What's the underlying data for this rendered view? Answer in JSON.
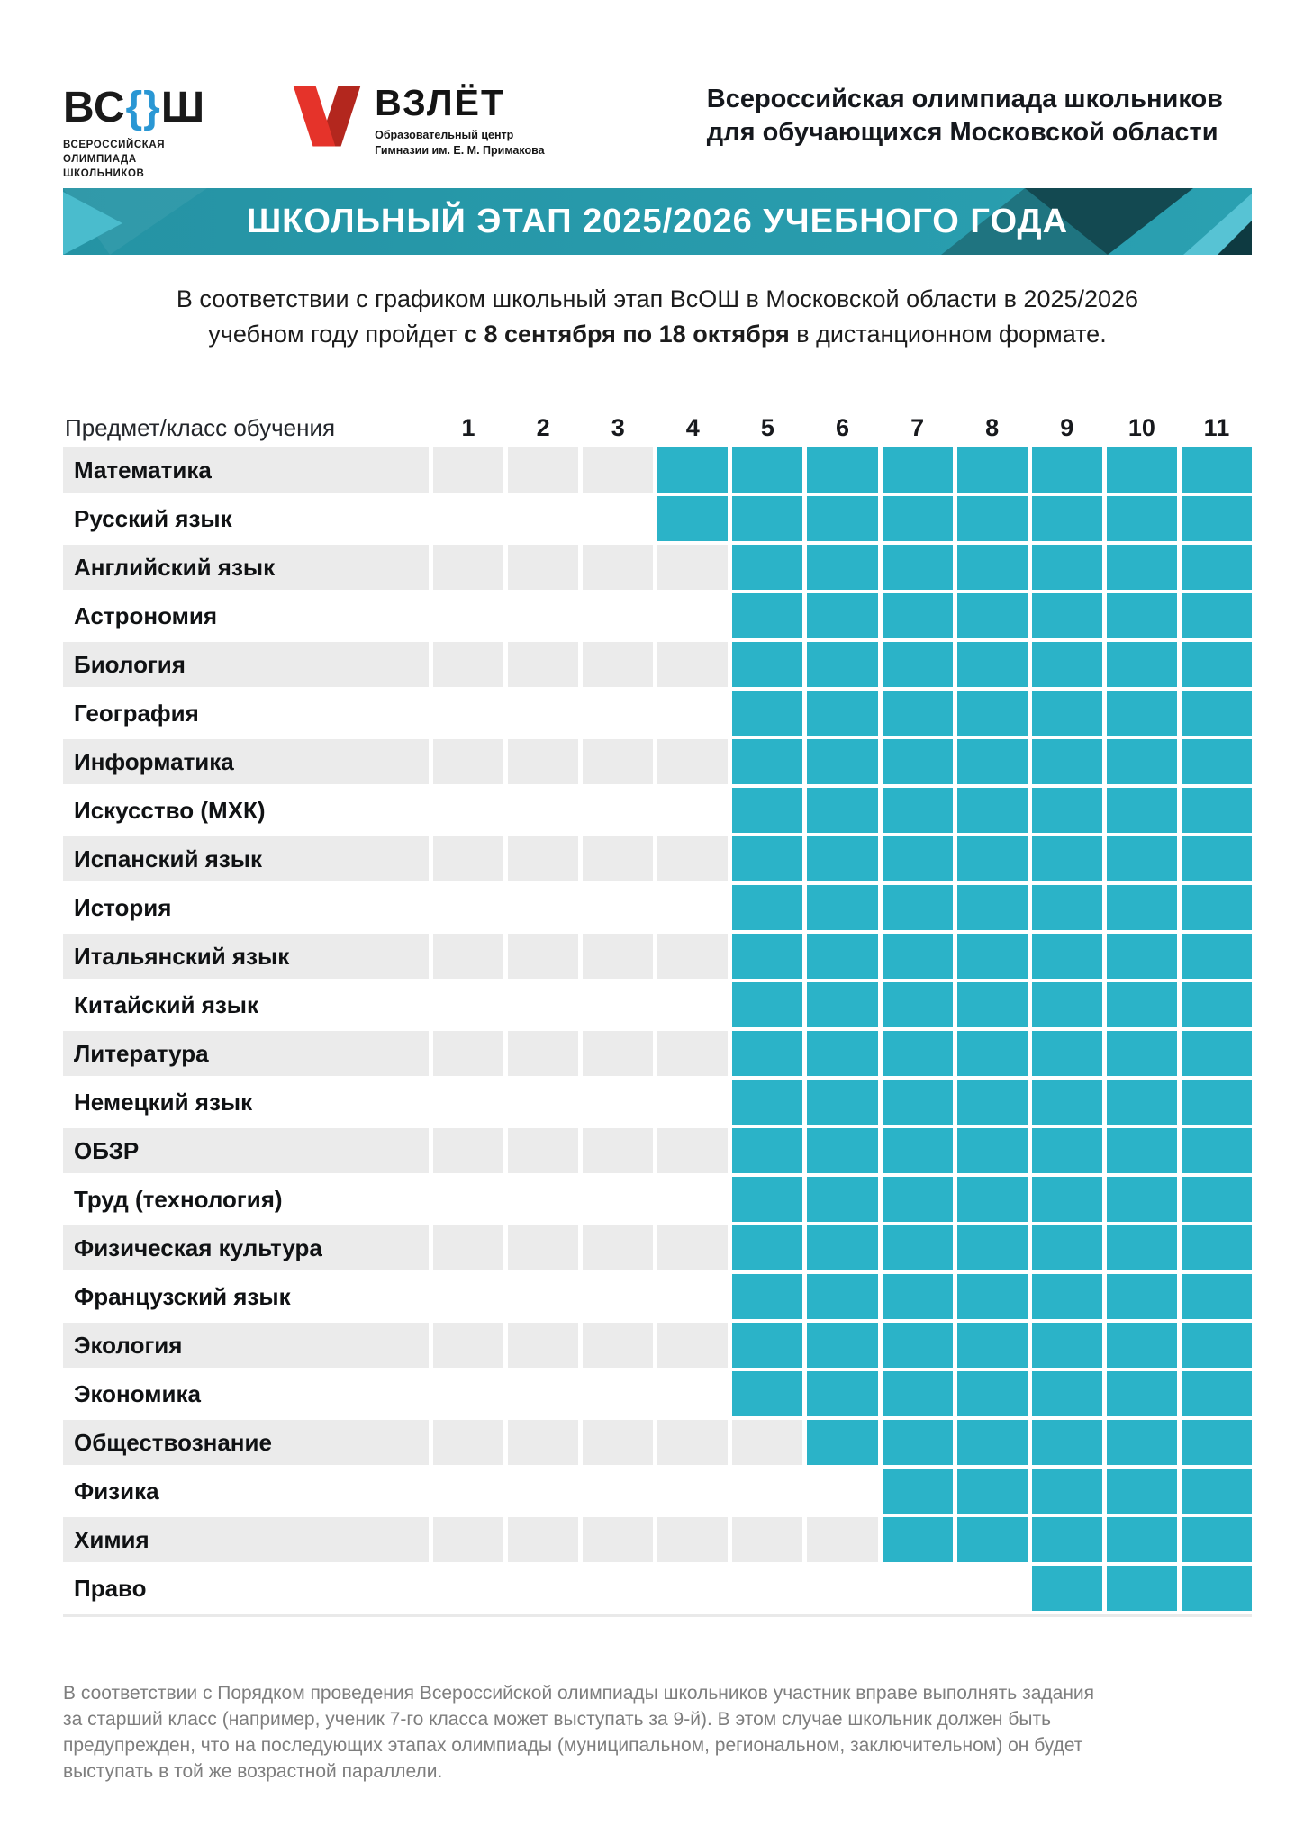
{
  "colors": {
    "teal_cell": "#2bb3c8",
    "banner_bg": "#2799aa",
    "banner_light": "#4abccd",
    "banner_dark": "#134951",
    "stripe": "#ebebeb",
    "logo_blue": "#2a97d4",
    "logo_red": "#e5332a",
    "logo_red_dark": "#b3271e",
    "text_dark": "#15181d",
    "footnote_gray": "#7e7e7e"
  },
  "header": {
    "vsosh_logo": {
      "part1": "ВС",
      "braces": "{}",
      "part2": "Ш",
      "subtitle_lines": [
        "ВСЕРОССИЙСКАЯ",
        "ОЛИМПИАДА",
        "ШКОЛЬНИКОВ"
      ]
    },
    "vzlet_logo": {
      "name": "ВЗЛЁТ",
      "subtitle_lines": [
        "Образовательный центр",
        "Гимназии им. Е. М. Примакова"
      ]
    },
    "title_lines": [
      "Всероссийская олимпиада школьников",
      "для обучающихся Московской области"
    ]
  },
  "banner": {
    "text": "ШКОЛЬНЫЙ ЭТАП 2025/2026 УЧЕБНОГО ГОДА"
  },
  "intro": {
    "line1": "В соответствии с графиком школьный этап ВсОШ в Московской области в 2025/2026",
    "line2_pre": "учебном году пройдет ",
    "line2_bold": "с 8 сентября по 18 октября",
    "line2_post": " в дистанционном формате."
  },
  "table": {
    "header_label": "Предмет/класс обучения",
    "columns": [
      "1",
      "2",
      "3",
      "4",
      "5",
      "6",
      "7",
      "8",
      "9",
      "10",
      "11"
    ],
    "rows": [
      {
        "subject": "Математика",
        "grades_from": 4,
        "grades_to": 11
      },
      {
        "subject": "Русский язык",
        "grades_from": 4,
        "grades_to": 11
      },
      {
        "subject": "Английский язык",
        "grades_from": 5,
        "grades_to": 11
      },
      {
        "subject": "Астрономия",
        "grades_from": 5,
        "grades_to": 11
      },
      {
        "subject": "Биология",
        "grades_from": 5,
        "grades_to": 11
      },
      {
        "subject": "География",
        "grades_from": 5,
        "grades_to": 11
      },
      {
        "subject": "Информатика",
        "grades_from": 5,
        "grades_to": 11
      },
      {
        "subject": "Искусство (МХК)",
        "grades_from": 5,
        "grades_to": 11
      },
      {
        "subject": "Испанский язык",
        "grades_from": 5,
        "grades_to": 11
      },
      {
        "subject": "История",
        "grades_from": 5,
        "grades_to": 11
      },
      {
        "subject": "Итальянский язык",
        "grades_from": 5,
        "grades_to": 11
      },
      {
        "subject": "Китайский язык",
        "grades_from": 5,
        "grades_to": 11
      },
      {
        "subject": "Литература",
        "grades_from": 5,
        "grades_to": 11
      },
      {
        "subject": "Немецкий язык",
        "grades_from": 5,
        "grades_to": 11
      },
      {
        "subject": "ОБЗР",
        "grades_from": 5,
        "grades_to": 11
      },
      {
        "subject": "Труд (технология)",
        "grades_from": 5,
        "grades_to": 11
      },
      {
        "subject": "Физическая культура",
        "grades_from": 5,
        "grades_to": 11
      },
      {
        "subject": "Французский язык",
        "grades_from": 5,
        "grades_to": 11
      },
      {
        "subject": "Экология",
        "grades_from": 5,
        "grades_to": 11
      },
      {
        "subject": "Экономика",
        "grades_from": 5,
        "grades_to": 11
      },
      {
        "subject": "Обществознание",
        "grades_from": 6,
        "grades_to": 11
      },
      {
        "subject": "Физика",
        "grades_from": 7,
        "grades_to": 11
      },
      {
        "subject": "Химия",
        "grades_from": 7,
        "grades_to": 11
      },
      {
        "subject": "Право",
        "grades_from": 9,
        "grades_to": 11
      }
    ]
  },
  "footnote": {
    "lines": [
      "В соответствии с Порядком проведения Всероссийской олимпиады школьников участник вправе выполнять задания",
      "за старший класс (например, ученик 7-го класса может выступать за 9-й). В этом случае школьник должен быть",
      "предупрежден, что на последующих этапах олимпиады (муниципальном, региональном, заключительном) он будет",
      "выступать в той же возрастной параллели."
    ]
  }
}
